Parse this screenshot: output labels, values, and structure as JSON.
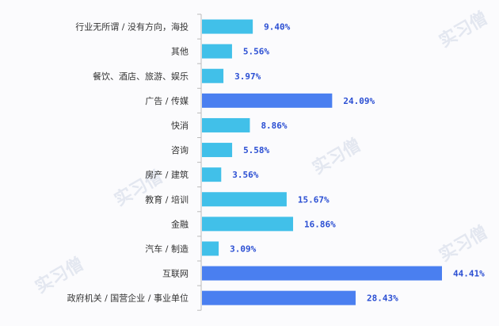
{
  "chart_data": {
    "type": "bar",
    "orientation": "horizontal",
    "categories": [
      "行业无所谓 / 没有方向，海投",
      "其他",
      "餐饮、酒店、旅游、娱乐",
      "广告 / 传媒",
      "快消",
      "咨询",
      "房产 / 建筑",
      "教育 / 培训",
      "金融",
      "汽车 / 制造",
      "互联网",
      "政府机关 / 国营企业 / 事业单位"
    ],
    "values": [
      9.4,
      5.56,
      3.97,
      24.09,
      8.86,
      5.58,
      3.56,
      15.67,
      16.86,
      3.09,
      44.41,
      28.43
    ],
    "value_labels": [
      "9.40%",
      "5.56%",
      "3.97%",
      "24.09%",
      "8.86%",
      "5.58%",
      "3.56%",
      "15.67%",
      "16.86%",
      "3.09%",
      "44.41%",
      "28.43%"
    ],
    "highlight": [
      false,
      false,
      false,
      true,
      false,
      false,
      false,
      false,
      false,
      false,
      true,
      true
    ],
    "colors": {
      "normal": "#41c0e9",
      "highlight": "#4a7ff0",
      "label": "#2b4fd3"
    },
    "xlim": [
      0,
      45
    ],
    "grid": false,
    "watermark": "实习僧 shixiseng.com"
  }
}
